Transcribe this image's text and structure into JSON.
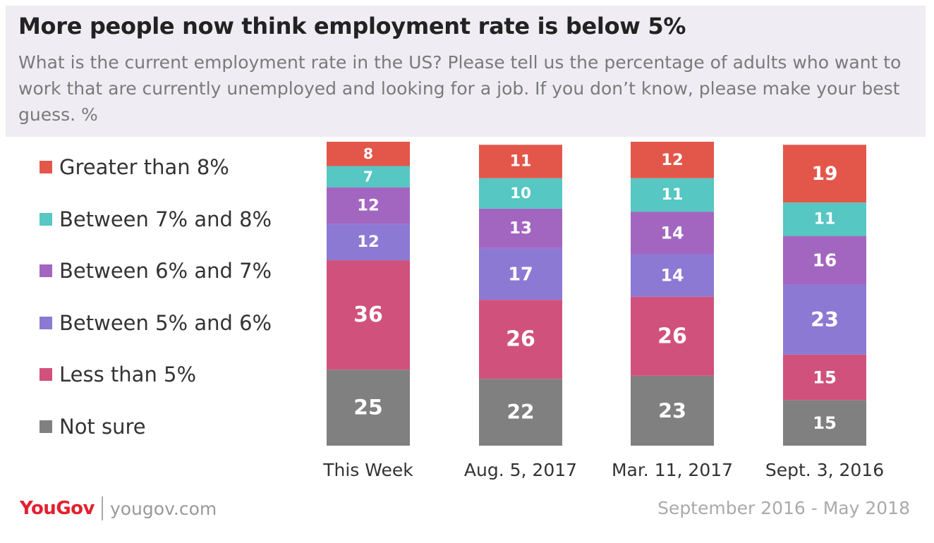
{
  "header": {
    "title": "More people now think employment rate is below 5%",
    "subtitle": "What is the current employment rate in the US? Please tell us the percentage of adults who want to work that are currently unemployed and looking for a job. If you don’t know, please make your best guess. %"
  },
  "footer": {
    "brand": "YouGov",
    "url": "yougov.com",
    "date_range": "September 2016 - May 2018"
  },
  "chart_data": {
    "type": "bar",
    "stacked": true,
    "categories": [
      "This Week",
      "Aug. 5, 2017",
      "Mar. 11, 2017",
      "Sept. 3, 2016"
    ],
    "series": [
      {
        "name": "Not sure",
        "color": "#808080",
        "values": [
          25,
          22,
          23,
          15
        ]
      },
      {
        "name": "Less than 5%",
        "color": "#d0527c",
        "values": [
          36,
          26,
          26,
          15
        ]
      },
      {
        "name": "Between 5% and 6%",
        "color": "#8c79d3",
        "values": [
          12,
          17,
          14,
          23
        ]
      },
      {
        "name": "Between 6% and 7%",
        "color": "#a266c0",
        "values": [
          12,
          13,
          14,
          16
        ]
      },
      {
        "name": "Between 7% and 8%",
        "color": "#56c7c3",
        "values": [
          7,
          10,
          11,
          11
        ]
      },
      {
        "name": "Greater than 8%",
        "color": "#e3574a",
        "values": [
          8,
          11,
          12,
          19
        ]
      }
    ],
    "legend_order": [
      "Greater than 8%",
      "Between 7% and 8%",
      "Between 6% and 7%",
      "Between 5% and 6%",
      "Less than 5%",
      "Not sure"
    ],
    "legend_position": "left",
    "grid": false
  }
}
